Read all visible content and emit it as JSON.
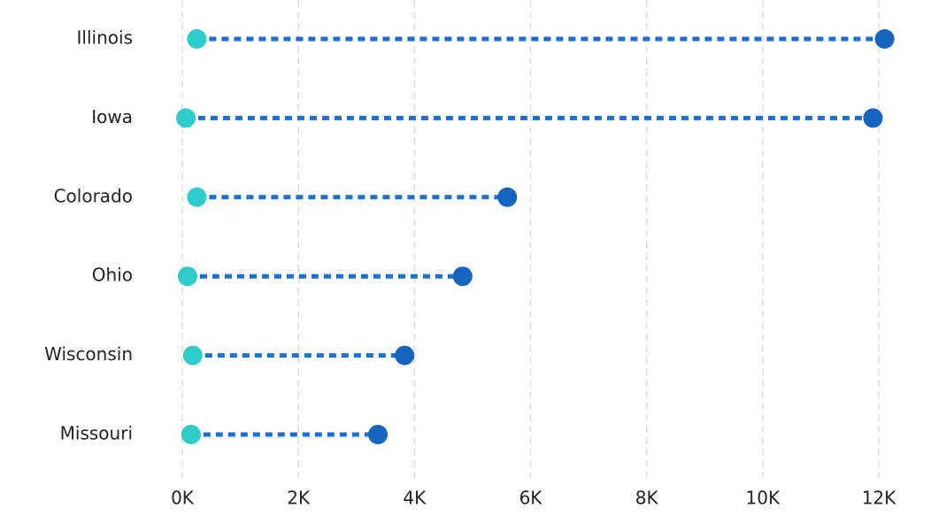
{
  "chart_data": {
    "type": "dumbbell",
    "categories": [
      "Illinois",
      "Iowa",
      "Colorado",
      "Ohio",
      "Wisconsin",
      "Missouri"
    ],
    "series": [
      {
        "color": "#2ecbcb",
        "values": [
          250,
          60,
          250,
          90,
          180,
          150
        ]
      },
      {
        "color": "#1565c0",
        "values": [
          12100,
          11900,
          5600,
          4830,
          3830,
          3370
        ]
      }
    ],
    "connector_color": "#1a6fd0",
    "xlim": [
      0,
      12000
    ],
    "xticks": [
      {
        "value": 0,
        "label": "0K"
      },
      {
        "value": 2000,
        "label": "2K"
      },
      {
        "value": 4000,
        "label": "4K"
      },
      {
        "value": 6000,
        "label": "6K"
      },
      {
        "value": 8000,
        "label": "8K"
      },
      {
        "value": 10000,
        "label": "10K"
      },
      {
        "value": 12000,
        "label": "12K"
      }
    ],
    "grid": true
  }
}
